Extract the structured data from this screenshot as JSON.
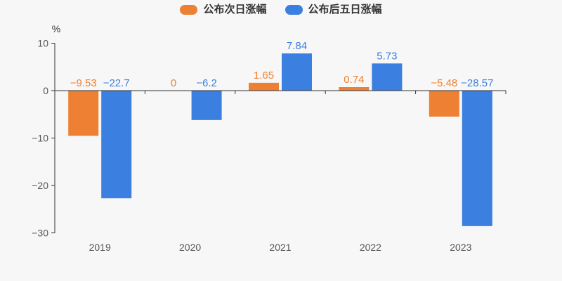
{
  "chart_data": {
    "type": "bar",
    "title": "",
    "unit_label": "%",
    "categories": [
      "2019",
      "2020",
      "2021",
      "2022",
      "2023"
    ],
    "series": [
      {
        "name": "公布次日涨幅",
        "color": "#ed8032",
        "values": [
          -9.53,
          0,
          1.65,
          0.74,
          -5.48
        ]
      },
      {
        "name": "公布后五日涨幅",
        "color": "#3b7fe0",
        "values": [
          -22.7,
          -6.2,
          7.84,
          5.73,
          -28.57
        ]
      }
    ],
    "yticks": [
      10,
      0,
      -10,
      -20,
      -30
    ],
    "ylim": [
      -30,
      10
    ],
    "grid": false,
    "legend_position": "top",
    "value_labels_shown": true,
    "colors": {
      "background": "#f7f7f7",
      "axis": "#333333",
      "tick_text": "#555555",
      "legend_text": "#333333"
    }
  }
}
